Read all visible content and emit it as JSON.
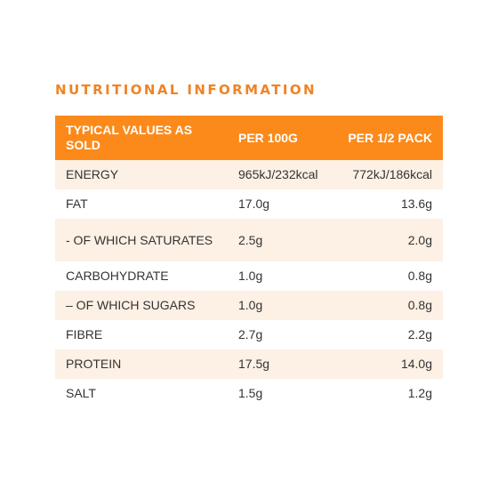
{
  "title": "NUTRITIONAL INFORMATION",
  "columns": {
    "label": "TYPICAL VALUES AS SOLD",
    "per100": "PER 100G",
    "perHalf": "PER 1/2 PACK"
  },
  "rows": [
    {
      "label": "ENERGY",
      "per100": "965kJ/232kcal",
      "perHalf": "772kJ/186kcal"
    },
    {
      "label": "FAT",
      "per100": "17.0g",
      "perHalf": "13.6g"
    },
    {
      "label": "- OF WHICH SATURATES",
      "per100": "2.5g",
      "perHalf": "2.0g"
    },
    {
      "label": "CARBOHYDRATE",
      "per100": "1.0g",
      "perHalf": "0.8g"
    },
    {
      "label": "– OF WHICH SUGARS",
      "per100": "1.0g",
      "perHalf": "0.8g"
    },
    {
      "label": "FIBRE",
      "per100": "2.7g",
      "perHalf": "2.2g"
    },
    {
      "label": "PROTEIN",
      "per100": "17.5g",
      "perHalf": "14.0g"
    },
    {
      "label": "SALT",
      "per100": "1.5g",
      "perHalf": "1.2g"
    }
  ],
  "colors": {
    "title": "#f08325",
    "header_bg": "#fb8a1b",
    "alt_row_bg": "#fdf0e4"
  }
}
